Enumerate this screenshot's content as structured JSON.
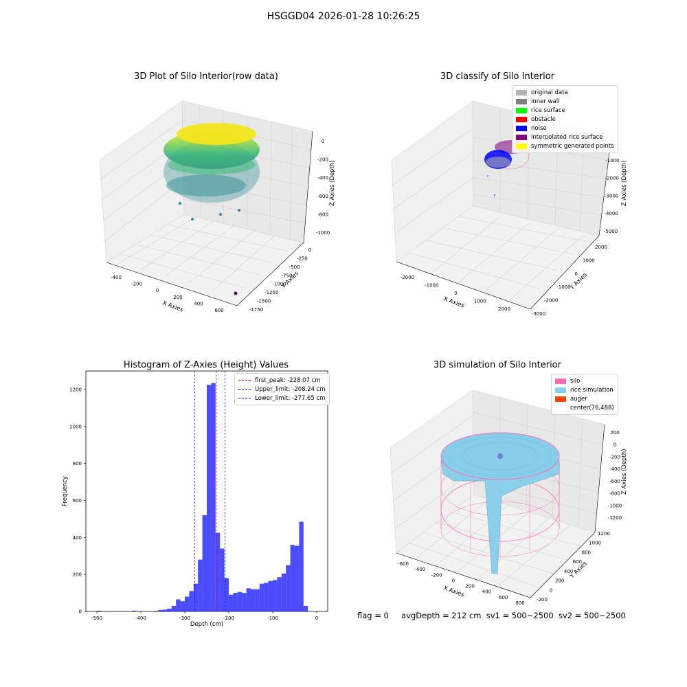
{
  "suptitle": "HSGGD04 2026-01-28 10:26:25",
  "footer": {
    "flag": "flag = 0",
    "avg": "avgDepth = 212 cm",
    "sv1": "sv1 = 500~2500",
    "sv2": "sv2 = 500~2500"
  },
  "panels": {
    "raw": {
      "title": "3D Plot of Silo Interior(row data)",
      "xlabel": "X Axies",
      "ylabel": "Y Axies",
      "zlabel": "Z Axies (Depth)",
      "xticks": [
        "-400",
        "-200",
        "0",
        "200",
        "400",
        "600"
      ],
      "yticks": [
        "0",
        "-250",
        "-500",
        "-750",
        "-1000",
        "-1250",
        "-1500",
        "-1750"
      ],
      "zticks": [
        "0",
        "-200",
        "-400",
        "-600",
        "-800",
        "-1000"
      ]
    },
    "classify": {
      "title": "3D classify of Silo Interior",
      "xlabel": "X Axies",
      "ylabel": "Y Axies",
      "zlabel": "Z Axies (Depth)",
      "xticks": [
        "-2000",
        "-1000",
        "0",
        "1000",
        "2000"
      ],
      "yticks": [
        "2000",
        "1000",
        "0",
        "-1000",
        "-2000",
        "-3000"
      ],
      "zticks": [
        "0",
        "-1000",
        "-2000",
        "-3000",
        "-4000",
        "-5000"
      ],
      "legend": [
        {
          "label": "original data",
          "color": "#b3b3b3"
        },
        {
          "label": "inner wall",
          "color": "#808080"
        },
        {
          "label": "rice surface",
          "color": "#00ff00"
        },
        {
          "label": "obstacle",
          "color": "#ff0000"
        },
        {
          "label": "noise",
          "color": "#0000ff"
        },
        {
          "label": "interpolated rice surface",
          "color": "#800080"
        },
        {
          "label": "symmetric generated points",
          "color": "#ffff00"
        }
      ]
    },
    "simulation": {
      "title": "3D simulation of Silo Interior",
      "xlabel": "X Axies",
      "ylabel": "Y Axies",
      "zlabel": "Z Axies (Depth)",
      "xticks": [
        "-600",
        "-400",
        "-200",
        "0",
        "200",
        "400",
        "600",
        "800"
      ],
      "yticks": [
        "-200",
        "0",
        "200",
        "400",
        "600",
        "800",
        "1000",
        "1200"
      ],
      "zticks": [
        "200",
        "0",
        "-200",
        "-400",
        "-600",
        "-800",
        "-1000",
        "-1200"
      ],
      "legend": [
        {
          "label": "silo",
          "color": "#ff69b4"
        },
        {
          "label": "rice simulation",
          "color": "#87ceeb"
        },
        {
          "label": "auger",
          "color": "#ff4500"
        },
        {
          "label": "center(76,488)",
          "color": "#ffffff"
        }
      ]
    }
  },
  "chart_data": {
    "type": "bar",
    "title": "Histogram of Z-Axies (Height) Values",
    "xlabel": "Depth (cm)",
    "ylabel": "Frequency",
    "xlim": [
      -525,
      25
    ],
    "ylim": [
      0,
      1300
    ],
    "xticks": [
      -500,
      -400,
      -300,
      -200,
      -100,
      0
    ],
    "yticks": [
      0,
      200,
      400,
      600,
      800,
      1000,
      1200
    ],
    "bin_width": 10,
    "bin_starts": [
      -500,
      -490,
      -480,
      -470,
      -460,
      -450,
      -440,
      -430,
      -420,
      -410,
      -400,
      -390,
      -380,
      -370,
      -360,
      -350,
      -340,
      -330,
      -320,
      -310,
      -300,
      -290,
      -280,
      -270,
      -260,
      -250,
      -240,
      -230,
      -220,
      -210,
      -200,
      -190,
      -180,
      -170,
      -160,
      -150,
      -140,
      -130,
      -120,
      -110,
      -100,
      -90,
      -80,
      -70,
      -60,
      -50,
      -40,
      -30,
      -20,
      -10,
      0
    ],
    "values": [
      4,
      0,
      0,
      0,
      0,
      0,
      0,
      0,
      4,
      0,
      2,
      0,
      0,
      3,
      8,
      10,
      15,
      30,
      65,
      55,
      80,
      110,
      150,
      280,
      520,
      1225,
      1235,
      425,
      340,
      180,
      90,
      100,
      105,
      100,
      125,
      120,
      120,
      150,
      155,
      165,
      170,
      185,
      205,
      250,
      360,
      355,
      485,
      30,
      0,
      0,
      0
    ],
    "bar_color": "#0000ff",
    "vlines": [
      {
        "label": "first_peak: -228.07 cm",
        "x": -228.07,
        "color": "#ff0000"
      },
      {
        "label": "Upper_limit: -208.24 cm",
        "x": -208.24,
        "color": "#0000ff"
      },
      {
        "label": "Lower_limit: -277.65 cm",
        "x": -277.65,
        "color": "#0000ff"
      }
    ],
    "legend_position": "upper right"
  }
}
